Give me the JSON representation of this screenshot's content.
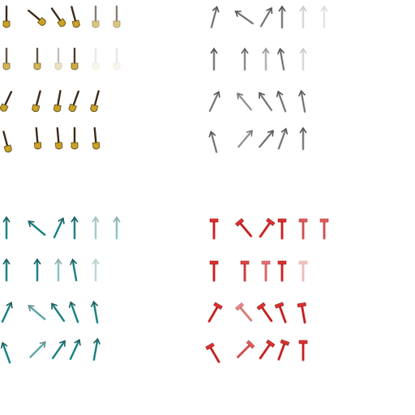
{
  "sheet": {
    "groups": [
      {
        "id": "gold-shovels",
        "tool": "shovel",
        "head_color": "#c9a227",
        "handle_color": "#3a2a1a",
        "rows": [
          [
            {
              "r": 0,
              "v": 1
            },
            {
              "r": -50,
              "v": 1
            },
            {
              "r": -35,
              "v": 1
            },
            {
              "r": -15,
              "v": 1
            },
            {
              "r": 0,
              "v": 0.6
            },
            {
              "r": 0,
              "v": 0.6
            }
          ],
          [
            {
              "r": 0,
              "v": 0.8
            },
            {
              "r": 0,
              "v": 0.8
            },
            {
              "r": 0,
              "v": 0.3
            },
            {
              "r": 0,
              "v": 0.9
            },
            {
              "r": 0,
              "v": 0.1
            },
            {
              "r": 0,
              "v": 0.1
            }
          ],
          [
            {
              "r": 25,
              "v": 1
            },
            {
              "r": 15,
              "v": 1
            },
            {
              "r": 10,
              "v": 1
            },
            {
              "r": 20,
              "v": 1
            },
            {
              "r": 15,
              "v": 1
            }
          ],
          [
            {
              "r": -15,
              "v": 1
            },
            {
              "r": -5,
              "v": 1
            },
            {
              "r": -5,
              "v": 1
            },
            {
              "r": 0,
              "v": 1
            },
            {
              "r": -5,
              "v": 1
            }
          ]
        ]
      },
      {
        "id": "grey-arrows",
        "tool": "arrow",
        "head_color": "#9a9a9a",
        "handle_color": "#555555",
        "rows": [
          [
            {
              "r": 15,
              "v": 1
            },
            {
              "r": -55,
              "v": 1
            },
            {
              "r": 30,
              "v": 1
            },
            {
              "r": 0,
              "v": 1
            },
            {
              "r": 0,
              "v": 0.3
            },
            {
              "r": 0,
              "v": 0.2
            }
          ],
          [
            {
              "r": 0,
              "v": 1
            },
            {
              "r": 0,
              "v": 0.9
            },
            {
              "r": 0,
              "v": 0.6
            },
            {
              "r": -10,
              "v": 1
            },
            {
              "r": 0,
              "v": 0.3
            }
          ],
          [
            {
              "r": 25,
              "v": 1
            },
            {
              "r": -40,
              "v": 0.8
            },
            {
              "r": -35,
              "v": 1
            },
            {
              "r": -20,
              "v": 1
            },
            {
              "r": -10,
              "v": 1
            }
          ],
          [
            {
              "r": -15,
              "v": 1
            },
            {
              "r": 40,
              "v": 0.8
            },
            {
              "r": 40,
              "v": 1
            },
            {
              "r": 20,
              "v": 1
            },
            {
              "r": 0,
              "v": 1
            }
          ]
        ]
      },
      {
        "id": "teal-arrows",
        "tool": "arrow",
        "head_color": "#2a9a9a",
        "handle_color": "#1f5f5f",
        "rows": [
          [
            {
              "r": 0,
              "v": 1
            },
            {
              "r": -50,
              "v": 1
            },
            {
              "r": 25,
              "v": 1
            },
            {
              "r": 0,
              "v": 1
            },
            {
              "r": 0,
              "v": 0.4
            },
            {
              "r": 0,
              "v": 0.5
            }
          ],
          [
            {
              "r": 0,
              "v": 1
            },
            {
              "r": 0,
              "v": 1
            },
            {
              "r": 0,
              "v": 0.5
            },
            {
              "r": -10,
              "v": 1
            },
            {
              "r": 0,
              "v": 0.3
            }
          ],
          [
            {
              "r": 25,
              "v": 1
            },
            {
              "r": -50,
              "v": 0.7
            },
            {
              "r": -35,
              "v": 1
            },
            {
              "r": -20,
              "v": 1
            },
            {
              "r": -10,
              "v": 1
            }
          ],
          [
            {
              "r": -20,
              "v": 1
            },
            {
              "r": 45,
              "v": 0.7
            },
            {
              "r": 35,
              "v": 1
            },
            {
              "r": 25,
              "v": 1
            },
            {
              "r": 10,
              "v": 1
            }
          ]
        ]
      },
      {
        "id": "red-hammers",
        "tool": "hammer",
        "head_color": "#e03030",
        "handle_color": "#8a1a1a",
        "rows": [
          [
            {
              "r": 0,
              "v": 1
            },
            {
              "r": -40,
              "v": 1
            },
            {
              "r": 35,
              "v": 1
            },
            {
              "r": 0,
              "v": 1
            },
            {
              "r": 0,
              "v": 0.8
            },
            {
              "r": 0,
              "v": 0.8
            }
          ],
          [
            {
              "r": 0,
              "v": 1
            },
            {
              "r": 0,
              "v": 0.9
            },
            {
              "r": 0,
              "v": 0.7
            },
            {
              "r": 0,
              "v": 1
            },
            {
              "r": 0,
              "v": 0.3
            }
          ],
          [
            {
              "r": 30,
              "v": 1
            },
            {
              "r": -40,
              "v": 0.6
            },
            {
              "r": -35,
              "v": 1
            },
            {
              "r": -20,
              "v": 1
            },
            {
              "r": -10,
              "v": 1
            }
          ],
          [
            {
              "r": -30,
              "v": 1
            },
            {
              "r": 45,
              "v": 0.8
            },
            {
              "r": 35,
              "v": 1
            },
            {
              "r": 20,
              "v": 1
            },
            {
              "r": 0,
              "v": 1
            }
          ]
        ]
      }
    ]
  }
}
